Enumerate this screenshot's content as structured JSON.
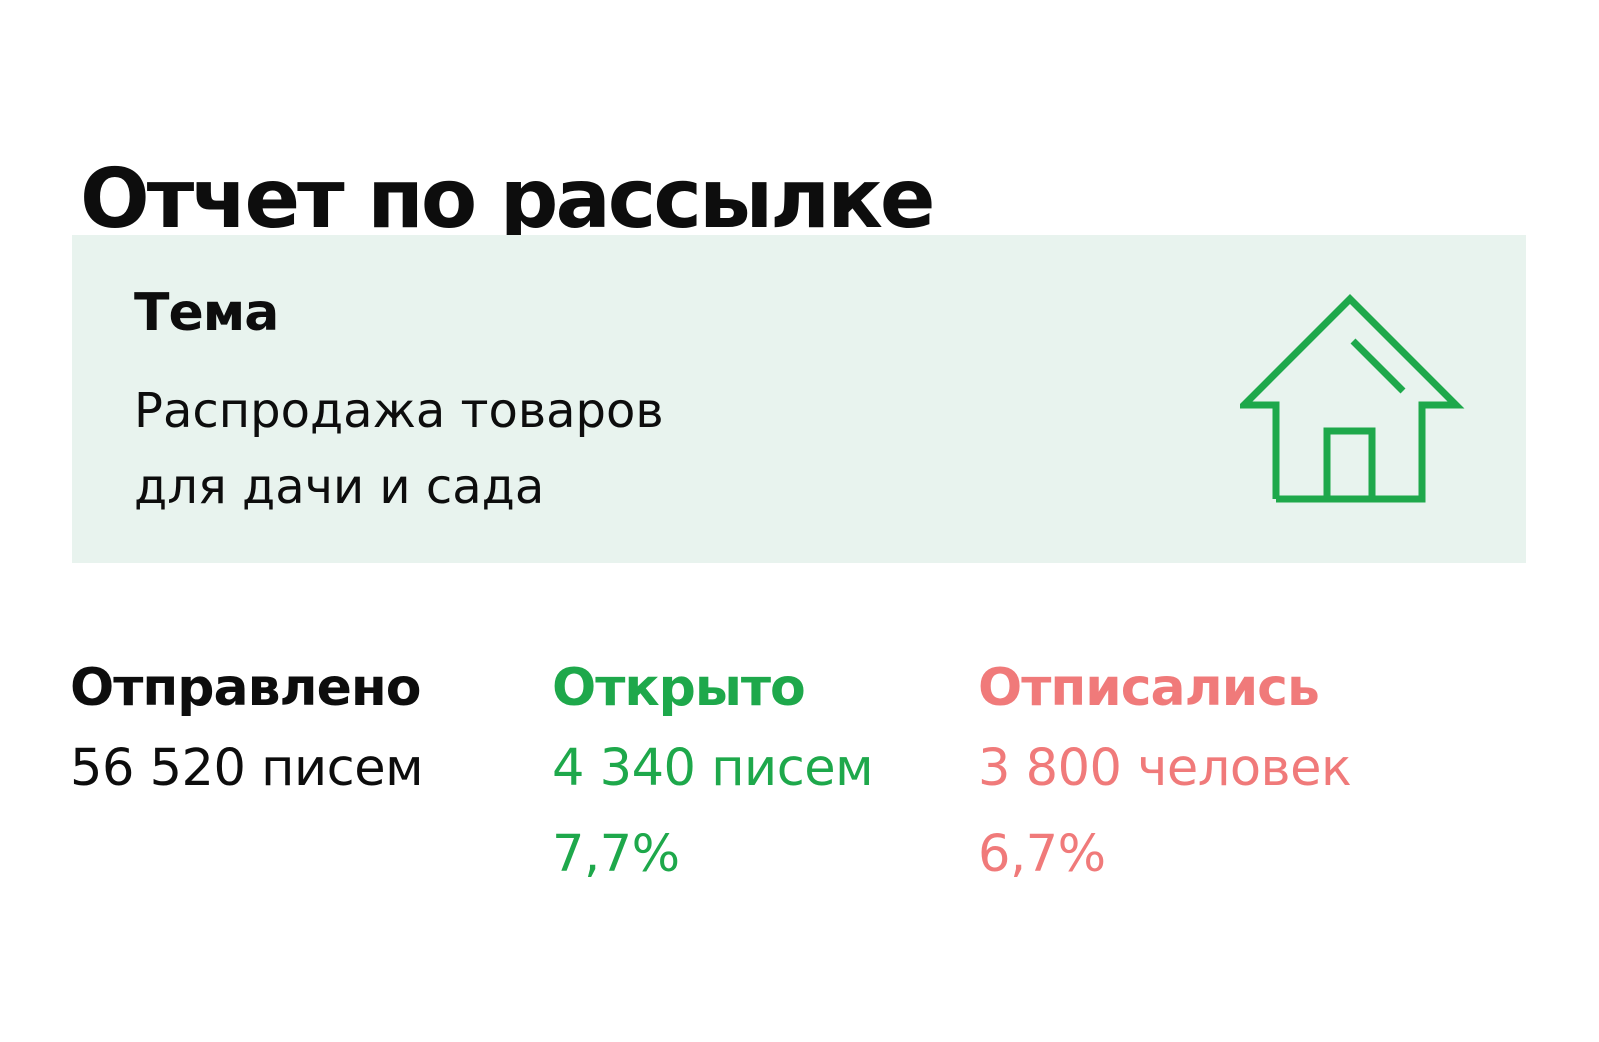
{
  "title": "Отчет по рассылке",
  "topic": {
    "label": "Тема",
    "text_line1": "Распродажа товаров",
    "text_line2": "для дачи и сада",
    "icon": "house-icon",
    "background_color": "#e8f3ee",
    "icon_color": "#1ea84b"
  },
  "stats": {
    "sent": {
      "label": "Отправлено",
      "value": "56 520 писем"
    },
    "opened": {
      "label": "Открыто",
      "value": "4 340 писем",
      "percent": "7,7%",
      "color": "#1ea84b"
    },
    "unsubscribed": {
      "label": "Отписались",
      "value": "3 800 человек",
      "percent": "6,7%",
      "color": "#f07a7a"
    }
  }
}
